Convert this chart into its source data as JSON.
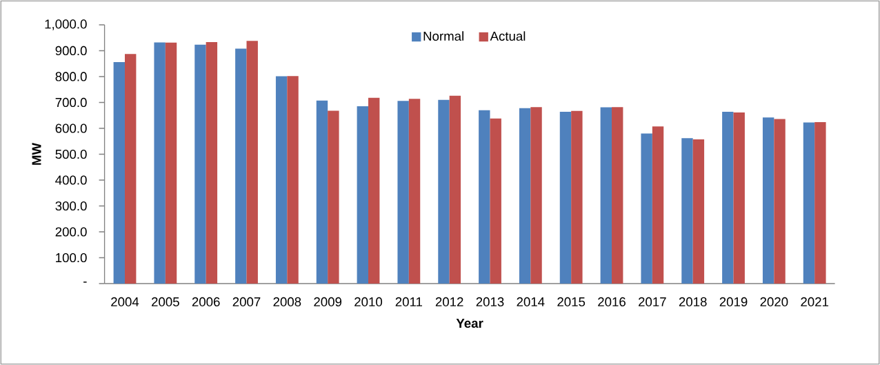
{
  "chart_data": {
    "type": "bar",
    "xlabel": "Year",
    "ylabel": "MW",
    "categories": [
      "2004",
      "2005",
      "2006",
      "2007",
      "2008",
      "2009",
      "2010",
      "2011",
      "2012",
      "2013",
      "2014",
      "2015",
      "2016",
      "2017",
      "2018",
      "2019",
      "2020",
      "2021"
    ],
    "series": [
      {
        "name": "Normal",
        "color": "#4f81bd",
        "values": [
          856,
          932,
          923,
          908,
          801,
          707,
          685,
          706,
          710,
          670,
          678,
          664,
          681,
          580,
          562,
          664,
          642,
          623
        ]
      },
      {
        "name": "Actual",
        "color": "#c0504d",
        "values": [
          887,
          931,
          933,
          938,
          802,
          668,
          718,
          714,
          726,
          638,
          682,
          667,
          682,
          607,
          557,
          661,
          636,
          624
        ]
      }
    ],
    "ylim": [
      0,
      1000
    ],
    "yticks": [
      {
        "value": 0,
        "label": "-"
      },
      {
        "value": 100,
        "label": "100.0"
      },
      {
        "value": 200,
        "label": "200.0"
      },
      {
        "value": 300,
        "label": "300.0"
      },
      {
        "value": 400,
        "label": "400.0"
      },
      {
        "value": 500,
        "label": "500.0"
      },
      {
        "value": 600,
        "label": "600.0"
      },
      {
        "value": 700,
        "label": "700.0"
      },
      {
        "value": 800,
        "label": "800.0"
      },
      {
        "value": 900,
        "label": "900.0"
      },
      {
        "value": 1000,
        "label": "1,000.0"
      }
    ],
    "legend": "top",
    "grid": false
  }
}
